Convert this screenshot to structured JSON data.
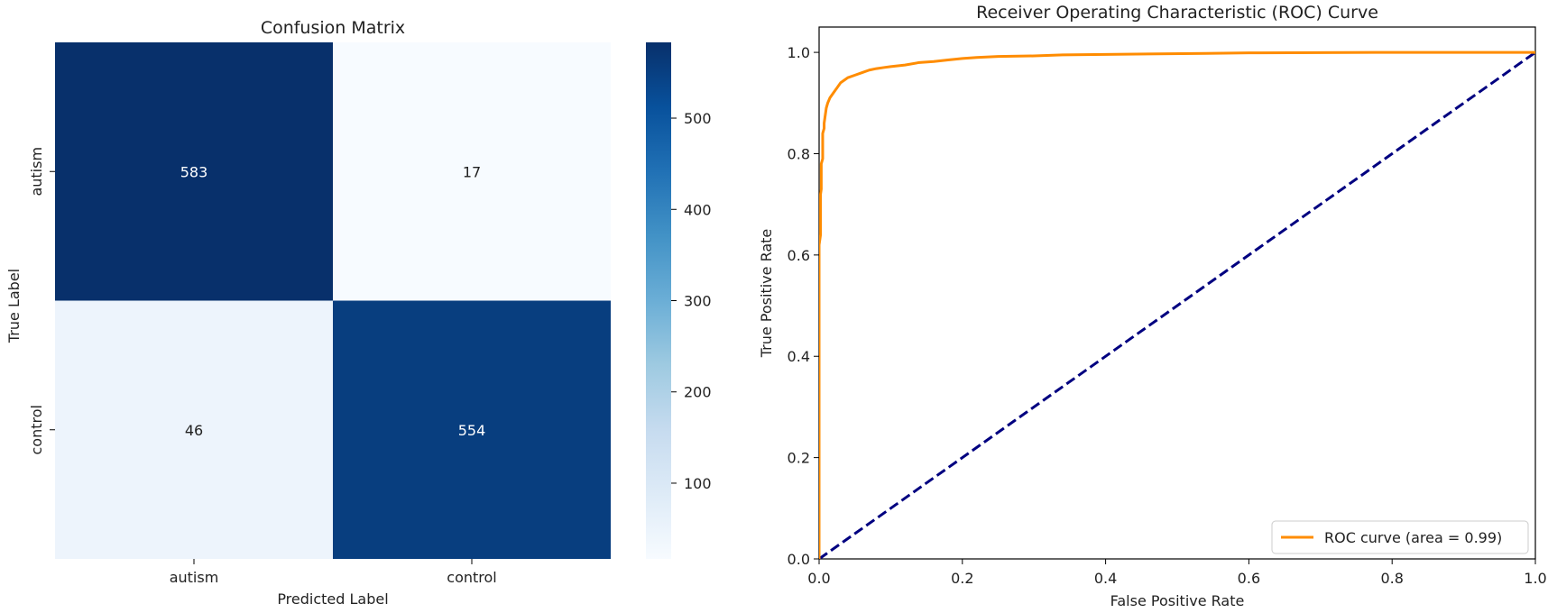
{
  "chart_data": [
    {
      "type": "heatmap",
      "title": "Confusion Matrix",
      "xlabel": "Predicted Label",
      "ylabel": "True Label",
      "x_categories": [
        "autism",
        "control"
      ],
      "y_categories": [
        "autism",
        "control"
      ],
      "values": [
        [
          583,
          17
        ],
        [
          46,
          554
        ]
      ],
      "colormap": "Blues",
      "colorbar": {
        "min": 17,
        "max": 583,
        "ticks": [
          100,
          200,
          300,
          400,
          500
        ]
      }
    },
    {
      "type": "line",
      "title": "Receiver Operating Characteristic (ROC) Curve",
      "xlabel": "False Positive Rate",
      "ylabel": "True Positive Rate",
      "xlim": [
        0.0,
        1.0
      ],
      "ylim": [
        0.0,
        1.05
      ],
      "xticks": [
        "0.0",
        "0.2",
        "0.4",
        "0.6",
        "0.8",
        "1.0"
      ],
      "yticks": [
        "0.0",
        "0.2",
        "0.4",
        "0.6",
        "0.8",
        "1.0"
      ],
      "legend_position": "lower-right",
      "series": [
        {
          "name": "ROC curve (area = 0.99)",
          "color": "#ff8c00",
          "style": "solid",
          "x": [
            0.0,
            0.0,
            0.002,
            0.002,
            0.003,
            0.003,
            0.005,
            0.005,
            0.007,
            0.007,
            0.01,
            0.012,
            0.015,
            0.02,
            0.025,
            0.03,
            0.035,
            0.04,
            0.05,
            0.06,
            0.07,
            0.08,
            0.09,
            0.1,
            0.12,
            0.14,
            0.16,
            0.18,
            0.2,
            0.22,
            0.25,
            0.3,
            0.34,
            0.4,
            0.54,
            0.6,
            0.8,
            1.0
          ],
          "y": [
            0.0,
            0.62,
            0.64,
            0.72,
            0.73,
            0.78,
            0.79,
            0.84,
            0.85,
            0.86,
            0.89,
            0.9,
            0.91,
            0.92,
            0.93,
            0.94,
            0.945,
            0.95,
            0.955,
            0.96,
            0.965,
            0.968,
            0.97,
            0.972,
            0.975,
            0.98,
            0.982,
            0.985,
            0.988,
            0.99,
            0.992,
            0.993,
            0.995,
            0.996,
            0.998,
            0.999,
            1.0,
            1.0
          ]
        },
        {
          "name": "",
          "color": "#000080",
          "style": "dashed",
          "x": [
            0.0,
            1.0
          ],
          "y": [
            0.0,
            1.0
          ]
        }
      ]
    }
  ]
}
